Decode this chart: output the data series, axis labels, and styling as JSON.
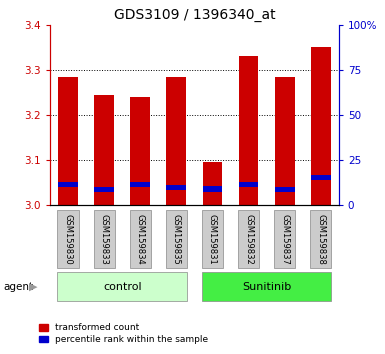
{
  "title": "GDS3109 / 1396340_at",
  "samples": [
    "GSM159830",
    "GSM159833",
    "GSM159834",
    "GSM159835",
    "GSM159831",
    "GSM159832",
    "GSM159837",
    "GSM159838"
  ],
  "red_values": [
    3.285,
    3.245,
    3.24,
    3.285,
    3.095,
    3.33,
    3.285,
    3.35
  ],
  "blue_values": [
    3.04,
    3.03,
    3.04,
    3.035,
    3.03,
    3.04,
    3.03,
    3.055
  ],
  "blue_heights": [
    0.012,
    0.01,
    0.012,
    0.01,
    0.012,
    0.012,
    0.01,
    0.012
  ],
  "y_min": 3.0,
  "y_max": 3.4,
  "y_ticks": [
    3.0,
    3.1,
    3.2,
    3.3,
    3.4
  ],
  "y2_ticks": [
    0,
    25,
    50,
    75,
    100
  ],
  "y2_labels": [
    "0",
    "25",
    "50",
    "75",
    "100%"
  ],
  "bar_color_red": "#cc0000",
  "bar_color_blue": "#0000cc",
  "bar_width": 0.55,
  "control_indices": [
    0,
    1,
    2,
    3
  ],
  "sunitinib_indices": [
    4,
    5,
    6,
    7
  ],
  "control_label": "control",
  "sunitinib_label": "Sunitinib",
  "control_color": "#ccffcc",
  "sunitinib_color": "#44ee44",
  "agent_label": "agent",
  "legend_red": "transformed count",
  "legend_blue": "percentile rank within the sample",
  "title_fontsize": 10,
  "tick_color_left": "#cc0000",
  "tick_color_right": "#0000cc",
  "bg_color": "#ffffff",
  "plot_bg_color": "#ffffff",
  "label_box_color": "#cccccc",
  "figwidth": 3.85,
  "figheight": 3.54,
  "dpi": 100
}
